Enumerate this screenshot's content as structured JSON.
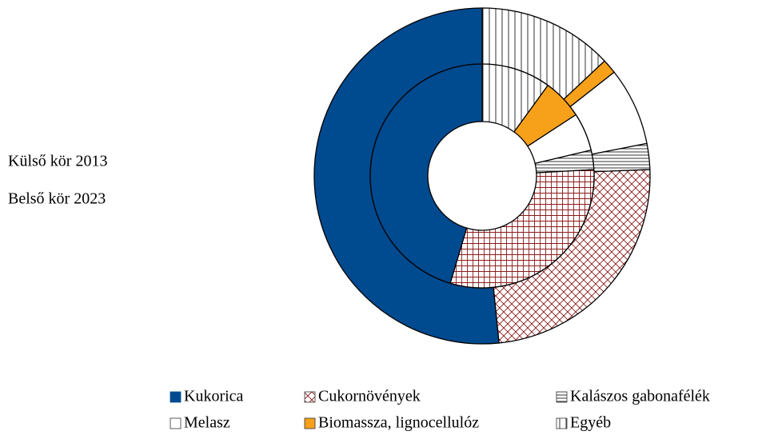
{
  "chart_data": {
    "type": "donut",
    "categories": [
      "Kukorica",
      "Cukornövények",
      "Kalászos gabonafélék",
      "Melasz",
      "Biomassza, lignocellulóz",
      "Egyéb"
    ],
    "colors": [
      "#004a8f",
      "#ffffff",
      "#ffffff",
      "#ffffff",
      "#f7a11a",
      "#ffffff"
    ],
    "series": [
      {
        "name": "Külső kör 2013",
        "values": [
          51.6,
          24,
          2.5,
          7.5,
          1.4,
          13
        ]
      },
      {
        "name": "Belső kör 2023",
        "values": [
          45.4,
          30.5,
          2.8,
          5.5,
          5.8,
          10
        ]
      }
    ],
    "legend": "bottom"
  }
}
